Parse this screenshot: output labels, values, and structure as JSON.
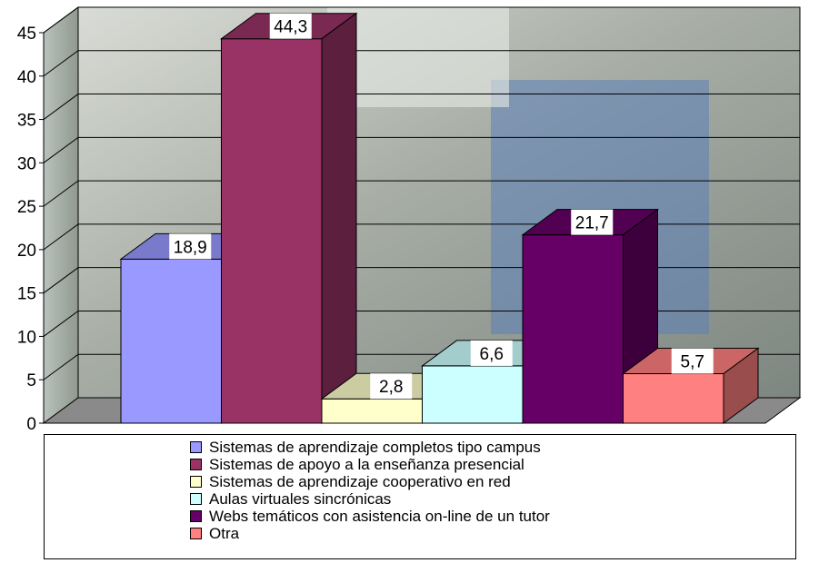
{
  "chart_data": {
    "type": "bar",
    "three_d": true,
    "background": "photo",
    "title": "",
    "xlabel": "",
    "ylabel": "",
    "ylim": [
      0,
      45
    ],
    "yticks": [
      "0",
      "5",
      "10",
      "15",
      "20",
      "25",
      "30",
      "35",
      "40",
      "45"
    ],
    "grid": true,
    "legend_position": "bottom",
    "series": [
      {
        "name": "Sistemas de aprendizaje completos tipo campus",
        "value": 18.9,
        "label": "18,9",
        "color": "#9999FF"
      },
      {
        "name": "Sistemas de apoyo a la enseñanza presencial",
        "value": 44.3,
        "label": "44,3",
        "color": "#993366"
      },
      {
        "name": "Sistemas de aprendizaje cooperativo en red",
        "value": 2.8,
        "label": "2,8",
        "color": "#FFFFCC"
      },
      {
        "name": "Aulas virtuales sincrónicas",
        "value": 6.6,
        "label": "6,6",
        "color": "#CCFFFF"
      },
      {
        "name": "Webs temáticos con asistencia on-line de un tutor",
        "value": 21.7,
        "label": "21,7",
        "color": "#660066"
      },
      {
        "name": "Otra",
        "value": 5.7,
        "label": "5,7",
        "color": "#FF8080"
      }
    ]
  }
}
